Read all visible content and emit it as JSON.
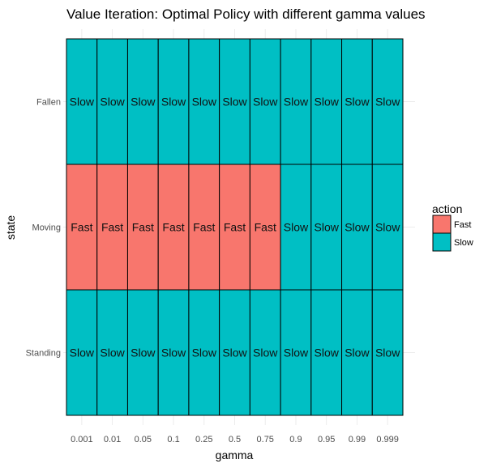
{
  "chart_data": {
    "type": "heatmap",
    "title": "Value Iteration: Optimal Policy with different gamma values",
    "xlabel": "gamma",
    "ylabel": "state",
    "x_categories": [
      "0.001",
      "0.01",
      "0.05",
      "0.1",
      "0.25",
      "0.5",
      "0.75",
      "0.9",
      "0.95",
      "0.99",
      "0.999"
    ],
    "y_categories": [
      "Fallen",
      "Moving",
      "Standing"
    ],
    "values": [
      [
        "Slow",
        "Slow",
        "Slow",
        "Slow",
        "Slow",
        "Slow",
        "Slow",
        "Slow",
        "Slow",
        "Slow",
        "Slow"
      ],
      [
        "Fast",
        "Fast",
        "Fast",
        "Fast",
        "Fast",
        "Fast",
        "Fast",
        "Slow",
        "Slow",
        "Slow",
        "Slow"
      ],
      [
        "Slow",
        "Slow",
        "Slow",
        "Slow",
        "Slow",
        "Slow",
        "Slow",
        "Slow",
        "Slow",
        "Slow",
        "Slow"
      ]
    ],
    "legend": {
      "title": "action",
      "position": "right",
      "entries": [
        {
          "label": "Fast",
          "color": "#F8766D"
        },
        {
          "label": "Slow",
          "color": "#00BFC4"
        }
      ]
    },
    "grid": true
  }
}
